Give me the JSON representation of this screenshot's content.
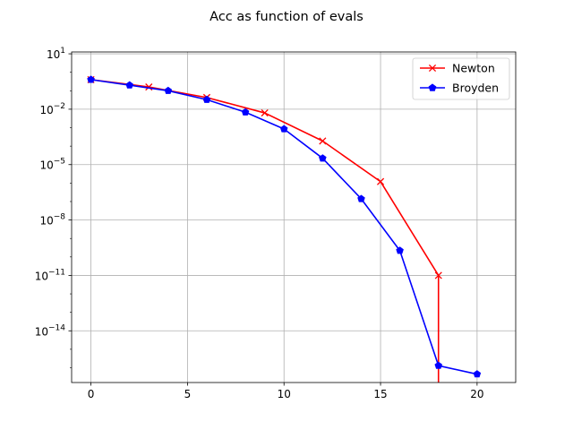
{
  "chart_data": {
    "type": "line",
    "title": "Acc as function of evals",
    "xlabel": "",
    "ylabel": "",
    "xlim": [
      -1,
      22
    ],
    "ylim_log10": [
      -16.8,
      1.1
    ],
    "yscale": "log",
    "grid": true,
    "legend_position": "top-right",
    "x_ticks": [
      0,
      5,
      10,
      15,
      20
    ],
    "x_tick_labels": [
      "0",
      "5",
      "10",
      "15",
      "20"
    ],
    "y_ticks": [
      1,
      -2,
      -5,
      -8,
      -11,
      -14
    ],
    "y_tick_labels": [
      {
        "base": "10",
        "exp": "1"
      },
      {
        "base": "10",
        "exp": "−2"
      },
      {
        "base": "10",
        "exp": "−5"
      },
      {
        "base": "10",
        "exp": "−8"
      },
      {
        "base": "10",
        "exp": "−11"
      },
      {
        "base": "10",
        "exp": "−14"
      }
    ],
    "series": [
      {
        "name": "Newton",
        "color": "#ff0000",
        "marker": "x",
        "x": [
          0,
          3,
          6,
          9,
          12,
          15,
          18
        ],
        "y": [
          0.4,
          0.16,
          0.043,
          0.0063,
          0.00019,
          1.2e-06,
          1e-11
        ]
      },
      {
        "name": "Broyden",
        "color": "#0000ff",
        "marker": "pentagon",
        "x": [
          0,
          2,
          4,
          6,
          8,
          10,
          12,
          14,
          16,
          18,
          20
        ],
        "y": [
          0.4,
          0.2,
          0.1,
          0.033,
          0.0069,
          0.00085,
          2.2e-05,
          1.4e-07,
          2.2e-10,
          1.3e-16,
          4.5e-17
        ]
      }
    ]
  }
}
